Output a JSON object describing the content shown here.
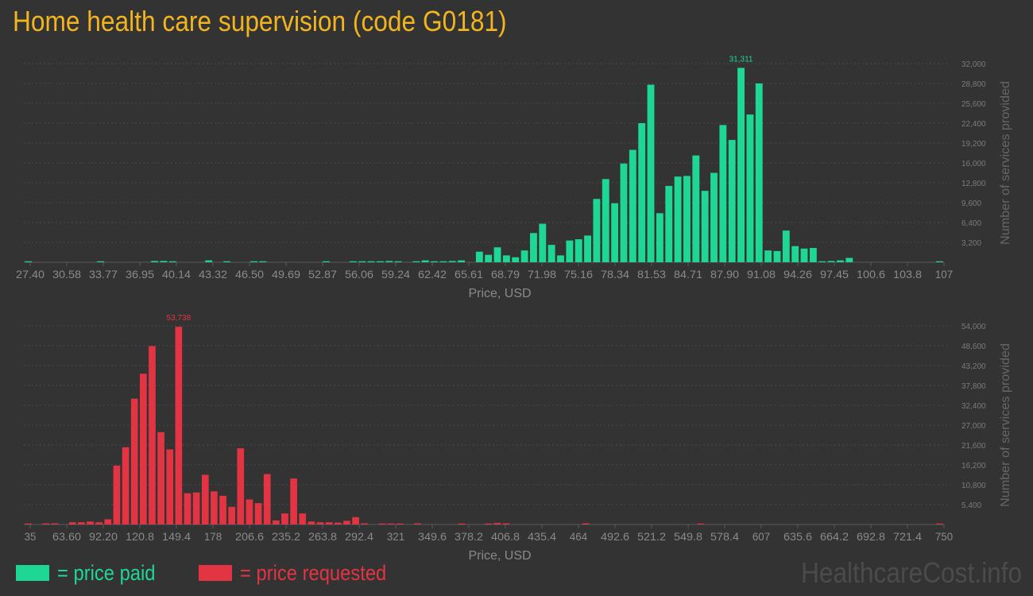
{
  "title": "Home health care supervision (code G0181)",
  "legend": {
    "paid_label": "= price paid",
    "requested_label": "= price requested"
  },
  "watermark": "HealthcareCost.info",
  "colors": {
    "paid": "#1fd795",
    "requested": "#e33444",
    "title": "#f2b41f",
    "background": "#333333"
  },
  "chart_data": [
    {
      "type": "bar",
      "series": [
        {
          "name": "price paid",
          "values": [
            50,
            0,
            0,
            0,
            0,
            0,
            0,
            0,
            50,
            0,
            0,
            0,
            0,
            0,
            200,
            200,
            50,
            0,
            0,
            0,
            300,
            0,
            50,
            0,
            0,
            50,
            50,
            0,
            0,
            0,
            0,
            0,
            0,
            50,
            0,
            0,
            50,
            50,
            100,
            50,
            200,
            100,
            0,
            50,
            300,
            100,
            100,
            200,
            300,
            0,
            1700,
            1200,
            2400,
            1100,
            800,
            1900,
            4700,
            6200,
            2800,
            1100,
            3500,
            3700,
            4300,
            10200,
            13400,
            9500,
            15900,
            18100,
            22400,
            28600,
            7900,
            12300,
            13800,
            13900,
            17200,
            11500,
            14400,
            22100,
            19700,
            31311,
            23800,
            28800,
            1900,
            1800,
            5100,
            2600,
            2200,
            2300,
            100,
            200,
            300,
            700,
            0,
            0,
            0,
            0,
            0,
            0,
            0,
            0,
            0,
            50
          ]
        }
      ],
      "xlabel": "Price, USD",
      "ylabel": "Number of services provided",
      "x_ticks": [
        "27.40",
        "30.58",
        "33.77",
        "36.95",
        "40.14",
        "43.32",
        "46.50",
        "49.69",
        "52.87",
        "56.06",
        "59.24",
        "62.42",
        "65.61",
        "68.79",
        "71.98",
        "75.16",
        "78.34",
        "81.53",
        "84.71",
        "87.90",
        "91.08",
        "94.26",
        "97.45",
        "100.6",
        "103.8",
        "107"
      ],
      "y_ticks": [
        "3,200",
        "6,400",
        "9,600",
        "12,800",
        "16,000",
        "19,200",
        "22,400",
        "25,600",
        "28,800",
        "32,000"
      ],
      "ylim": [
        0,
        32000
      ],
      "peak_label": "31,311",
      "grid": true
    },
    {
      "type": "bar",
      "series": [
        {
          "name": "price requested",
          "values": [
            200,
            0,
            300,
            300,
            0,
            600,
            600,
            800,
            600,
            1400,
            16000,
            21000,
            34200,
            41000,
            48500,
            25100,
            20400,
            53738,
            8500,
            8700,
            13500,
            9000,
            7800,
            4800,
            20700,
            6800,
            5800,
            13700,
            1100,
            3000,
            12500,
            3000,
            800,
            600,
            600,
            500,
            1000,
            2000,
            300,
            0,
            200,
            200,
            200,
            0,
            300,
            0,
            0,
            0,
            0,
            200,
            0,
            0,
            200,
            400,
            300,
            0,
            0,
            0,
            0,
            0,
            0,
            0,
            0,
            300,
            0,
            0,
            0,
            0,
            0,
            0,
            0,
            0,
            0,
            0,
            0,
            0,
            200,
            0,
            0,
            0,
            0,
            0,
            0,
            0,
            0,
            0,
            0,
            0,
            0,
            0,
            0,
            0,
            0,
            0,
            0,
            0,
            0,
            0,
            0,
            0,
            0,
            0,
            0,
            200
          ]
        }
      ],
      "xlabel": "Price, USD",
      "ylabel": "Number of services provided",
      "x_ticks": [
        "35",
        "63.60",
        "92.20",
        "120.8",
        "149.4",
        "178",
        "206.6",
        "235.2",
        "263.8",
        "292.4",
        "321",
        "349.6",
        "378.2",
        "406.8",
        "435.4",
        "464",
        "492.6",
        "521.2",
        "549.8",
        "578.4",
        "607",
        "635.6",
        "664.2",
        "692.8",
        "721.4",
        "750"
      ],
      "y_ticks": [
        "5,400",
        "10,800",
        "16,200",
        "21,600",
        "27,000",
        "32,400",
        "37,800",
        "43,200",
        "48,600",
        "54,000"
      ],
      "ylim": [
        0,
        54000
      ],
      "peak_label": "53,738",
      "grid": true
    }
  ]
}
